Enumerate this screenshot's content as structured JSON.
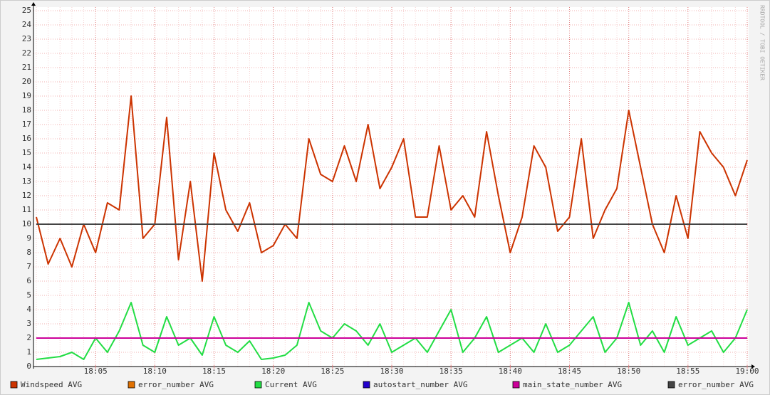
{
  "chart_data": {
    "type": "line",
    "watermark": "RRDTOOL / TOBI OETIKER",
    "x": [
      "18:00",
      "18:01",
      "18:02",
      "18:03",
      "18:04",
      "18:05",
      "18:06",
      "18:07",
      "18:08",
      "18:09",
      "18:10",
      "18:11",
      "18:12",
      "18:13",
      "18:14",
      "18:15",
      "18:16",
      "18:17",
      "18:18",
      "18:19",
      "18:20",
      "18:21",
      "18:22",
      "18:23",
      "18:24",
      "18:25",
      "18:26",
      "18:27",
      "18:28",
      "18:29",
      "18:30",
      "18:31",
      "18:32",
      "18:33",
      "18:34",
      "18:35",
      "18:36",
      "18:37",
      "18:38",
      "18:39",
      "18:40",
      "18:41",
      "18:42",
      "18:43",
      "18:44",
      "18:45",
      "18:46",
      "18:47",
      "18:48",
      "18:49",
      "18:50",
      "18:51",
      "18:52",
      "18:53",
      "18:54",
      "18:55",
      "18:56",
      "18:57",
      "18:58",
      "18:59",
      "19:00"
    ],
    "series": [
      {
        "name": "Windspeed AVG",
        "color": "#cc3300",
        "values": [
          10.5,
          7.2,
          9.0,
          7.0,
          10.0,
          8.0,
          11.5,
          11.0,
          19.0,
          9.0,
          10.0,
          17.5,
          7.5,
          13.0,
          6.0,
          15.0,
          11.0,
          9.5,
          11.5,
          8.0,
          8.5,
          10.0,
          9.0,
          16.0,
          13.5,
          13.0,
          15.5,
          13.0,
          17.0,
          12.5,
          14.0,
          16.0,
          10.5,
          10.5,
          15.5,
          11.0,
          12.0,
          10.5,
          16.5,
          12.0,
          8.0,
          10.5,
          15.5,
          14.0,
          9.5,
          10.5,
          16.0,
          9.0,
          11.0,
          12.5,
          18.0,
          14.0,
          10.0,
          8.0,
          12.0,
          9.0,
          16.5,
          15.0,
          14.0,
          12.0,
          14.5
        ]
      },
      {
        "name": "error_number AVG",
        "color": "#e07000",
        "values": [
          null,
          null,
          null,
          null,
          null,
          null,
          null,
          null,
          null,
          null,
          null,
          null,
          null,
          null,
          null,
          null,
          null,
          null,
          null,
          null,
          null,
          null,
          null,
          null,
          null,
          null,
          null,
          null,
          null,
          null,
          null,
          null,
          null,
          null,
          null,
          null,
          null,
          null,
          null,
          null,
          null,
          null,
          null,
          null,
          null,
          null,
          null,
          null,
          null,
          null,
          null,
          null,
          null,
          null,
          null,
          null,
          null,
          null,
          null,
          null,
          null
        ]
      },
      {
        "name": "Current AVG",
        "color": "#22dd44",
        "values": [
          0.5,
          0.6,
          0.7,
          1.0,
          0.5,
          2.0,
          1.0,
          2.5,
          4.5,
          1.5,
          1.0,
          3.5,
          1.5,
          2.0,
          0.8,
          3.5,
          1.5,
          1.0,
          1.8,
          0.5,
          0.6,
          0.8,
          1.5,
          4.5,
          2.5,
          2.0,
          3.0,
          2.5,
          1.5,
          3.0,
          1.0,
          1.5,
          2.0,
          1.0,
          2.5,
          4.0,
          1.0,
          2.0,
          3.5,
          1.0,
          1.5,
          2.0,
          1.0,
          3.0,
          1.0,
          1.5,
          2.5,
          3.5,
          1.0,
          2.0,
          4.5,
          1.5,
          2.5,
          1.0,
          3.5,
          1.5,
          2.0,
          2.5,
          1.0,
          2.0,
          4.0
        ]
      },
      {
        "name": "autostart_number AVG",
        "color": "#2200cc",
        "values": [
          null,
          null,
          null,
          null,
          null,
          null,
          null,
          null,
          null,
          null,
          null,
          null,
          null,
          null,
          null,
          null,
          null,
          null,
          null,
          null,
          null,
          null,
          null,
          null,
          null,
          null,
          null,
          null,
          null,
          null,
          null,
          null,
          null,
          null,
          null,
          null,
          null,
          null,
          null,
          null,
          null,
          null,
          null,
          null,
          null,
          null,
          null,
          null,
          null,
          null,
          null,
          null,
          null,
          null,
          null,
          null,
          null,
          null,
          null,
          null,
          null
        ]
      },
      {
        "name": "main_state_number AVG",
        "color": "#cc0099",
        "values": [
          2,
          2,
          2,
          2,
          2,
          2,
          2,
          2,
          2,
          2,
          2,
          2,
          2,
          2,
          2,
          2,
          2,
          2,
          2,
          2,
          2,
          2,
          2,
          2,
          2,
          2,
          2,
          2,
          2,
          2,
          2,
          2,
          2,
          2,
          2,
          2,
          2,
          2,
          2,
          2,
          2,
          2,
          2,
          2,
          2,
          2,
          2,
          2,
          2,
          2,
          2,
          2,
          2,
          2,
          2,
          2,
          2,
          2,
          2,
          2,
          2
        ]
      },
      {
        "name": "error_number AVG",
        "color": "#444444",
        "values": [
          10,
          10,
          10,
          10,
          10,
          10,
          10,
          10,
          10,
          10,
          10,
          10,
          10,
          10,
          10,
          10,
          10,
          10,
          10,
          10,
          10,
          10,
          10,
          10,
          10,
          10,
          10,
          10,
          10,
          10,
          10,
          10,
          10,
          10,
          10,
          10,
          10,
          10,
          10,
          10,
          10,
          10,
          10,
          10,
          10,
          10,
          10,
          10,
          10,
          10,
          10,
          10,
          10,
          10,
          10,
          10,
          10,
          10,
          10,
          10,
          10
        ]
      }
    ],
    "xlim": [
      "18:00",
      "19:00"
    ],
    "xticks": [
      "18:05",
      "18:10",
      "18:15",
      "18:20",
      "18:25",
      "18:30",
      "18:35",
      "18:40",
      "18:45",
      "18:50",
      "18:55",
      "19:00"
    ],
    "ylim": [
      0,
      25
    ],
    "yticks": [
      0,
      1,
      2,
      3,
      4,
      5,
      6,
      7,
      8,
      9,
      10,
      11,
      12,
      13,
      14,
      15,
      16,
      17,
      18,
      19,
      20,
      21,
      22,
      23,
      24,
      25
    ],
    "grid": true
  }
}
